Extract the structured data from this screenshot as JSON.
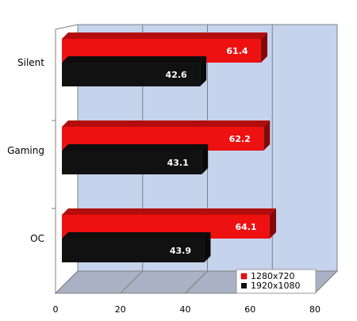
{
  "chart_data": {
    "type": "bar",
    "orientation": "horizontal",
    "style": "3d",
    "categories": [
      "Silent",
      "Gaming",
      "OC"
    ],
    "series": [
      {
        "name": "1280x720",
        "values": [
          61.4,
          62.2,
          64.1
        ],
        "color": "#ee1111"
      },
      {
        "name": "1920x1080",
        "values": [
          42.6,
          43.1,
          43.9
        ],
        "color": "#111111"
      }
    ],
    "xlim": [
      0,
      80
    ],
    "xticks": [
      "0",
      "20",
      "40",
      "60",
      "80"
    ],
    "grid": true,
    "wall_color": "#c5d3ec",
    "floor_color": "#a9b1c4",
    "legend_position": "bottom-right",
    "data_labels": [
      "61.4",
      "42.6",
      "62.2",
      "43.1",
      "64.1",
      "43.9"
    ]
  }
}
